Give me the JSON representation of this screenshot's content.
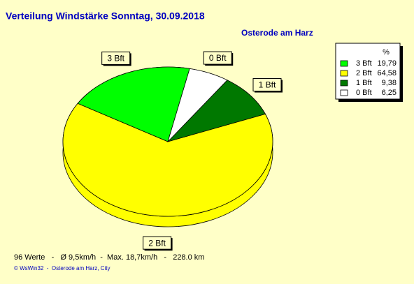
{
  "chart_data": {
    "type": "pie",
    "title": "Verteilung Windstärke  Sonntag, 30.09.2018",
    "subtitle": "Osterode am Harz",
    "legend_title": "%",
    "categories": [
      "3 Bft",
      "2 Bft",
      "1 Bft",
      "0 Bft"
    ],
    "values": [
      19.79,
      64.58,
      9.38,
      6.25
    ],
    "value_labels": [
      "19,79",
      "64,58",
      "9,38",
      "6,25"
    ],
    "colors": [
      "#00ff00",
      "#ffff00",
      "#007800",
      "#ffffff"
    ],
    "legend": "top-right",
    "note": "96 Werte   -   Ø 9,5km/h  -  Max. 18,7km/h   -   228.0 km",
    "credit": "© WsWin32  -  Osterode am Harz, City"
  }
}
